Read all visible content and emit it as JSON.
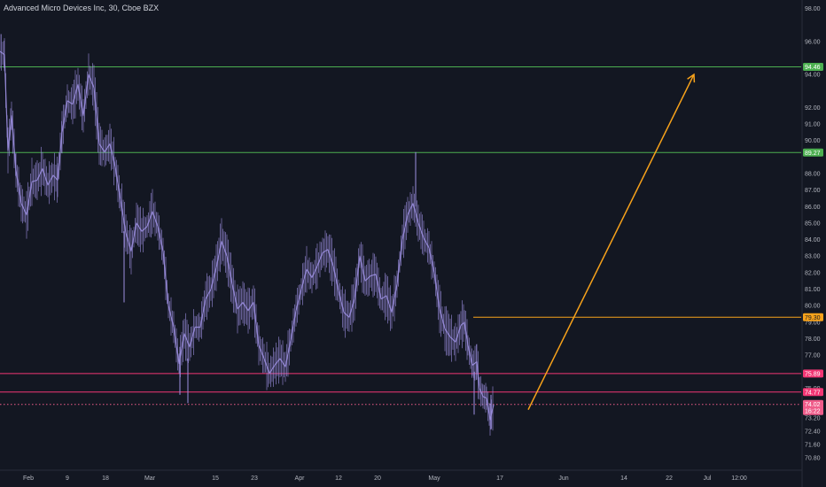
{
  "header": {
    "title": "Advanced Micro Devices Inc, 30, Cboe BZX"
  },
  "colors": {
    "background": "#131722",
    "price": "#9c8fe0",
    "green": "#4caf50",
    "pink": "#f23674",
    "orange": "#f7a21b",
    "axis_text": "#b2b5be",
    "current": "#ef5c8a"
  },
  "chart_data": {
    "type": "line",
    "symbol": "Advanced Micro Devices Inc",
    "interval": "30",
    "exchange": "Cboe BZX",
    "x_axis_labels": [
      "Feb",
      "9",
      "18",
      "Mar",
      "15",
      "23",
      "Apr",
      "12",
      "20",
      "May",
      "17",
      "Jun",
      "14",
      "22",
      "Jul",
      "12:00"
    ],
    "y_tick_labels": [
      "98.00",
      "96.00",
      "94.00",
      "92.00",
      "91.00",
      "90.00",
      "88.00",
      "87.00",
      "86.00",
      "85.00",
      "84.00",
      "83.00",
      "82.00",
      "81.00",
      "80.00",
      "79.00",
      "78.00",
      "77.00",
      "76.00",
      "75.00",
      "74.00",
      "73.20",
      "72.40",
      "71.60",
      "70.80"
    ],
    "y_range": [
      70.2,
      98.4
    ],
    "levels": [
      {
        "value": 94.46,
        "label": "94.46",
        "color": "#4caf50"
      },
      {
        "value": 89.27,
        "label": "89.27",
        "color": "#4caf50"
      },
      {
        "value": 79.3,
        "label": "79.30",
        "color": "#f7a21b"
      },
      {
        "value": 75.89,
        "label": "75.89",
        "color": "#f23674"
      },
      {
        "value": 74.77,
        "label": "74.77",
        "color": "#f23674"
      }
    ],
    "current_price": {
      "value": 74.02,
      "label": "74.02",
      "countdown": "16:22"
    },
    "price_path": [
      {
        "x": 0,
        "y": 95.4
      },
      {
        "x": 5,
        "y": 95.2
      },
      {
        "x": 9,
        "y": 89.4
      },
      {
        "x": 13,
        "y": 91.5
      },
      {
        "x": 18,
        "y": 88.2
      },
      {
        "x": 24,
        "y": 86.2
      },
      {
        "x": 30,
        "y": 85.5
      },
      {
        "x": 36,
        "y": 87.5
      },
      {
        "x": 42,
        "y": 87.6
      },
      {
        "x": 48,
        "y": 88.3
      },
      {
        "x": 54,
        "y": 87.3
      },
      {
        "x": 60,
        "y": 87.9
      },
      {
        "x": 65,
        "y": 87.6
      },
      {
        "x": 70,
        "y": 90.5
      },
      {
        "x": 76,
        "y": 92.4
      },
      {
        "x": 82,
        "y": 92.2
      },
      {
        "x": 88,
        "y": 93.4
      },
      {
        "x": 94,
        "y": 91.5
      },
      {
        "x": 100,
        "y": 94.0
      },
      {
        "x": 106,
        "y": 93.2
      },
      {
        "x": 112,
        "y": 89.8
      },
      {
        "x": 118,
        "y": 89.3
      },
      {
        "x": 124,
        "y": 89.8
      },
      {
        "x": 130,
        "y": 88.4
      },
      {
        "x": 136,
        "y": 86.4
      },
      {
        "x": 142,
        "y": 84.4
      },
      {
        "x": 148,
        "y": 83.3
      },
      {
        "x": 154,
        "y": 85.0
      },
      {
        "x": 160,
        "y": 84.5
      },
      {
        "x": 166,
        "y": 84.8
      },
      {
        "x": 172,
        "y": 85.7
      },
      {
        "x": 178,
        "y": 84.8
      },
      {
        "x": 184,
        "y": 83.3
      },
      {
        "x": 190,
        "y": 80.0
      },
      {
        "x": 196,
        "y": 78.7
      },
      {
        "x": 202,
        "y": 76.5
      },
      {
        "x": 208,
        "y": 78.3
      },
      {
        "x": 214,
        "y": 77.5
      },
      {
        "x": 220,
        "y": 78.7
      },
      {
        "x": 226,
        "y": 78.7
      },
      {
        "x": 232,
        "y": 80.4
      },
      {
        "x": 238,
        "y": 81.0
      },
      {
        "x": 244,
        "y": 82.3
      },
      {
        "x": 250,
        "y": 83.9
      },
      {
        "x": 256,
        "y": 83.0
      },
      {
        "x": 262,
        "y": 81.3
      },
      {
        "x": 268,
        "y": 79.8
      },
      {
        "x": 274,
        "y": 80.2
      },
      {
        "x": 280,
        "y": 79.7
      },
      {
        "x": 286,
        "y": 80.2
      },
      {
        "x": 292,
        "y": 77.6
      },
      {
        "x": 298,
        "y": 76.8
      },
      {
        "x": 304,
        "y": 75.9
      },
      {
        "x": 310,
        "y": 76.4
      },
      {
        "x": 316,
        "y": 76.8
      },
      {
        "x": 322,
        "y": 76.3
      },
      {
        "x": 328,
        "y": 77.9
      },
      {
        "x": 334,
        "y": 79.7
      },
      {
        "x": 340,
        "y": 81.0
      },
      {
        "x": 346,
        "y": 82.2
      },
      {
        "x": 352,
        "y": 81.7
      },
      {
        "x": 358,
        "y": 82.4
      },
      {
        "x": 364,
        "y": 83.2
      },
      {
        "x": 370,
        "y": 83.4
      },
      {
        "x": 376,
        "y": 82.4
      },
      {
        "x": 382,
        "y": 80.9
      },
      {
        "x": 388,
        "y": 79.6
      },
      {
        "x": 394,
        "y": 79.3
      },
      {
        "x": 400,
        "y": 80.4
      },
      {
        "x": 406,
        "y": 83.0
      },
      {
        "x": 412,
        "y": 81.5
      },
      {
        "x": 418,
        "y": 81.8
      },
      {
        "x": 424,
        "y": 81.9
      },
      {
        "x": 430,
        "y": 80.4
      },
      {
        "x": 436,
        "y": 80.6
      },
      {
        "x": 442,
        "y": 79.6
      },
      {
        "x": 448,
        "y": 81.3
      },
      {
        "x": 454,
        "y": 84.0
      },
      {
        "x": 460,
        "y": 85.5
      },
      {
        "x": 466,
        "y": 86.2
      },
      {
        "x": 472,
        "y": 85.0
      },
      {
        "x": 478,
        "y": 84.1
      },
      {
        "x": 484,
        "y": 83.5
      },
      {
        "x": 490,
        "y": 82.0
      },
      {
        "x": 496,
        "y": 79.8
      },
      {
        "x": 502,
        "y": 78.6
      },
      {
        "x": 508,
        "y": 78.1
      },
      {
        "x": 514,
        "y": 77.8
      },
      {
        "x": 520,
        "y": 78.8
      },
      {
        "x": 524,
        "y": 79.0
      },
      {
        "x": 528,
        "y": 77.6
      },
      {
        "x": 533,
        "y": 76.4
      },
      {
        "x": 538,
        "y": 76.6
      },
      {
        "x": 541,
        "y": 75.0
      },
      {
        "x": 545,
        "y": 74.5
      },
      {
        "x": 549,
        "y": 74.4
      },
      {
        "x": 553,
        "y": 73.1
      },
      {
        "x": 557,
        "y": 74.0
      }
    ],
    "price_spikes": [
      {
        "x": 140,
        "lo": 80.2,
        "hi": 84.5
      },
      {
        "x": 203,
        "lo": 74.6,
        "hi": 77.5
      },
      {
        "x": 212,
        "lo": 74.1,
        "hi": 76.8
      },
      {
        "x": 469,
        "lo": 86.0,
        "hi": 89.3
      },
      {
        "x": 535,
        "lo": 73.4,
        "hi": 76.0
      },
      {
        "x": 554,
        "lo": 72.5,
        "hi": 74.6
      }
    ],
    "projection_arrow": {
      "from": {
        "x": 596,
        "y": 73.7
      },
      "to": {
        "x": 783,
        "y": 94.0
      }
    },
    "grid": false
  }
}
